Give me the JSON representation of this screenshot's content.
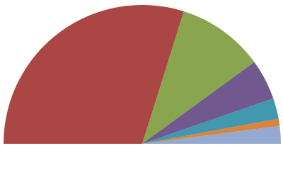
{
  "chart_data": {
    "type": "pie",
    "half": true,
    "categories": [
      null,
      null,
      null,
      null,
      null,
      null
    ],
    "values": [
      59.7,
      20.3,
      9.4,
      4.8,
      1.7,
      4.1
    ],
    "colors": [
      "#aa4643",
      "#89a54e",
      "#71588f",
      "#4198af",
      "#db843d",
      "#93a9cf"
    ]
  }
}
